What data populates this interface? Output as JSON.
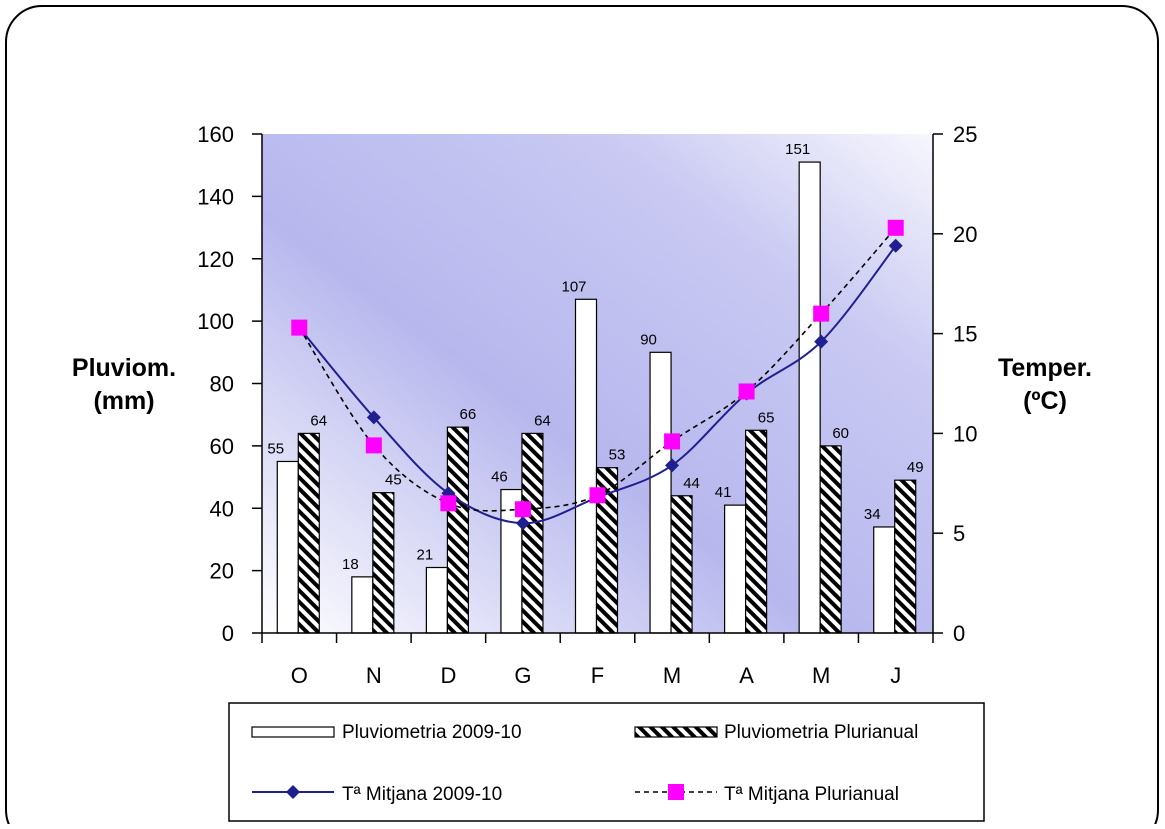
{
  "chart_data": {
    "type": "bar",
    "categories": [
      "O",
      "N",
      "D",
      "G",
      "F",
      "M",
      "A",
      "M",
      "J"
    ],
    "series": [
      {
        "name": "Pluviometria 2009-10",
        "kind": "bar",
        "axis": "left",
        "pattern": "none",
        "values": [
          55,
          18,
          21,
          46,
          107,
          90,
          41,
          151,
          34
        ],
        "value_labels": [
          "55",
          "18",
          "21",
          "46",
          "107",
          "90",
          "41",
          "151",
          "34"
        ]
      },
      {
        "name": "Pluviometria Plurianual",
        "kind": "bar",
        "axis": "left",
        "pattern": "diagonal-stripes",
        "values": [
          64,
          45,
          66,
          64,
          53,
          44,
          65,
          60,
          49
        ],
        "value_labels": [
          "64",
          "45",
          "66",
          "64",
          "53",
          "44",
          "65",
          "60",
          "49"
        ]
      },
      {
        "name": "Tª Mitjana 2009-10",
        "kind": "line",
        "axis": "right",
        "color": "#1f1f8f",
        "marker": "diamond",
        "line_style": "solid",
        "values": [
          15.3,
          10.8,
          7.0,
          5.5,
          6.8,
          8.4,
          12.0,
          14.6,
          19.4
        ]
      },
      {
        "name": "Tª Mitjana Plurianual",
        "kind": "line",
        "axis": "right",
        "color": "#000000",
        "marker_color": "#ff00ff",
        "marker": "square",
        "line_style": "dashed",
        "values": [
          15.3,
          9.4,
          6.5,
          6.2,
          6.9,
          9.6,
          12.1,
          16.0,
          20.3
        ]
      }
    ],
    "left_axis": {
      "title_lines": [
        "Pluviom.",
        "(mm)"
      ],
      "min": 0,
      "max": 160,
      "step": 20,
      "tick_labels": [
        "0",
        "20",
        "40",
        "60",
        "80",
        "100",
        "120",
        "140",
        "160"
      ]
    },
    "right_axis": {
      "title_lines": [
        "Temper.",
        "(ºC)"
      ],
      "min": 0,
      "max": 25,
      "step": 5,
      "tick_labels": [
        "0",
        "5",
        "10",
        "15",
        "20",
        "25"
      ]
    },
    "grid": false,
    "legend_position": "bottom",
    "plot_background": "gradient-blue"
  }
}
